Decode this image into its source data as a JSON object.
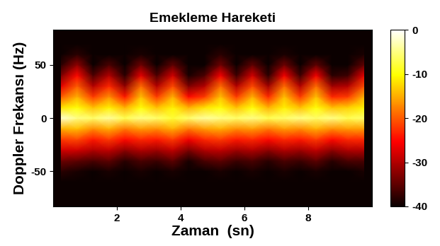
{
  "chart_data": {
    "type": "heatmap",
    "title": "Emekleme Hareketi",
    "x_label": "Zaman  (sn)",
    "y_label": "Doppler Frekansı (Hz)",
    "color": "hot",
    "x": [
      0.25,
      0.75,
      1.25,
      1.75,
      2.25,
      2.75,
      3.25,
      3.75,
      4.25,
      4.75,
      5.25,
      5.75,
      6.25,
      6.75,
      7.25,
      7.75,
      8.25,
      8.75,
      9.25,
      9.75
    ],
    "y": [
      -80,
      -70,
      -60,
      -50,
      -40,
      -30,
      -20,
      -10,
      0,
      10,
      20,
      30,
      40,
      50,
      60,
      70,
      80
    ],
    "cells": [
      [
        -40,
        -40,
        -40,
        -40,
        -40,
        -40,
        -40,
        -40,
        -40,
        -40,
        -40,
        -40,
        -40,
        -40,
        -40,
        -40,
        -40,
        -40,
        -40,
        -40
      ],
      [
        -40,
        -40,
        -40,
        -40,
        -40,
        -40,
        -40,
        -40,
        -40,
        -40,
        -40,
        -40,
        -40,
        -40,
        -40,
        -40,
        -40,
        -40,
        -40,
        -40
      ],
      [
        -40,
        -40,
        -40,
        -40,
        -40,
        -40,
        -40,
        -40,
        -40,
        -40,
        -40,
        -40,
        -40,
        -40,
        -40,
        -40,
        -40,
        -40,
        -40,
        -40
      ],
      [
        -38,
        -39,
        -40,
        -39,
        -40,
        -39,
        -40,
        -39,
        -40,
        -40,
        -39,
        -40,
        -39,
        -40,
        -39,
        -40,
        -39,
        -40,
        -40,
        -39
      ],
      [
        -34,
        -35,
        -36,
        -35,
        -38,
        -36,
        -37,
        -35,
        -39,
        -36,
        -35,
        -37,
        -36,
        -38,
        -36,
        -37,
        -35,
        -38,
        -36,
        -36
      ],
      [
        -28,
        -28,
        -30,
        -29,
        -32,
        -30,
        -31,
        -29,
        -33,
        -30,
        -29,
        -31,
        -30,
        -32,
        -30,
        -31,
        -29,
        -32,
        -30,
        -30
      ],
      [
        -22,
        -21,
        -24,
        -22,
        -25,
        -23,
        -24,
        -22,
        -26,
        -23,
        -22,
        -24,
        -23,
        -25,
        -23,
        -24,
        -22,
        -25,
        -23,
        -23
      ],
      [
        -15,
        -14,
        -17,
        -15,
        -18,
        -16,
        -17,
        -15,
        -18,
        -16,
        -15,
        -17,
        -16,
        -18,
        -16,
        -17,
        -15,
        -17,
        -16,
        -16
      ],
      [
        -2,
        -5,
        -6,
        -4,
        -7,
        -5,
        -6,
        -8,
        -6,
        -4,
        -5,
        -6,
        -5,
        -7,
        -6,
        -5,
        -6,
        -5,
        -7,
        -6
      ],
      [
        -12,
        -10,
        -14,
        -11,
        -15,
        -10,
        -14,
        -11,
        -15,
        -12,
        -10,
        -14,
        -10,
        -15,
        -11,
        -14,
        -10,
        -14,
        -13,
        -11
      ],
      [
        -20,
        -15,
        -22,
        -17,
        -24,
        -14,
        -22,
        -15,
        -25,
        -22,
        -14,
        -22,
        -15,
        -23,
        -14,
        -22,
        -14,
        -23,
        -22,
        -15
      ],
      [
        -27,
        -20,
        -30,
        -23,
        -32,
        -19,
        -30,
        -21,
        -33,
        -30,
        -19,
        -30,
        -21,
        -31,
        -19,
        -30,
        -19,
        -31,
        -30,
        -21
      ],
      [
        -33,
        -25,
        -36,
        -30,
        -38,
        -27,
        -36,
        -28,
        -39,
        -36,
        -26,
        -37,
        -28,
        -38,
        -26,
        -37,
        -26,
        -38,
        -37,
        -27
      ],
      [
        -38,
        -32,
        -40,
        -36,
        -40,
        -34,
        -40,
        -35,
        -40,
        -40,
        -34,
        -40,
        -35,
        -40,
        -34,
        -40,
        -35,
        -40,
        -40,
        -35
      ],
      [
        -40,
        -38,
        -40,
        -40,
        -40,
        -39,
        -40,
        -40,
        -40,
        -40,
        -38,
        -40,
        -40,
        -40,
        -39,
        -40,
        -40,
        -40,
        -40,
        -39
      ],
      [
        -40,
        -40,
        -40,
        -40,
        -40,
        -40,
        -40,
        -40,
        -40,
        -40,
        -40,
        -40,
        -40,
        -40,
        -40,
        -40,
        -40,
        -40,
        -40,
        -40
      ],
      [
        -40,
        -40,
        -40,
        -40,
        -40,
        -40,
        -40,
        -40,
        -40,
        -40,
        -40,
        -40,
        -40,
        -40,
        -40,
        -40,
        -40,
        -40,
        -40,
        -40
      ]
    ],
    "xlim": [
      0,
      10
    ],
    "xticks": [
      2,
      4,
      6,
      8
    ],
    "ylim": [
      -83,
      83
    ],
    "yticks": [
      -50,
      0,
      50
    ],
    "colorbar_range": [
      -40,
      0
    ],
    "colorbar_ticks": [
      -40,
      -30,
      -20,
      -10,
      0
    ]
  }
}
